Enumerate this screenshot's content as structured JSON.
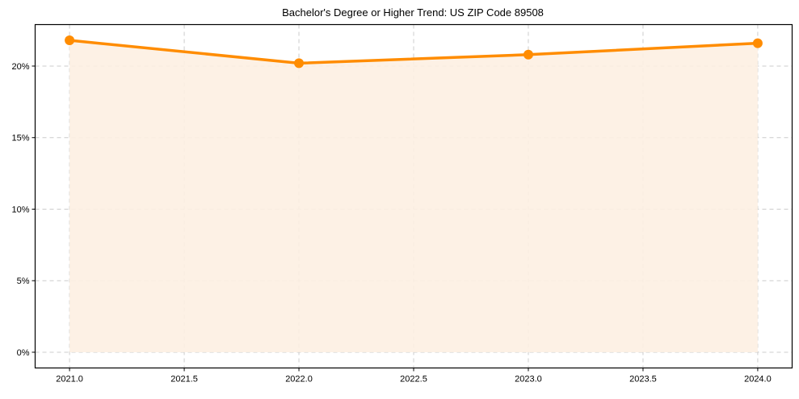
{
  "chart_data": {
    "type": "line",
    "title": "Bachelor's Degree or Higher Trend: US ZIP Code 89508",
    "xlabel": "",
    "ylabel": "",
    "x": [
      2021,
      2022,
      2023,
      2024
    ],
    "series": [
      {
        "name": "Bachelor's Degree or Higher",
        "values": [
          21.8,
          20.2,
          20.8,
          21.6
        ],
        "color": "#ff8c00",
        "fill_color": "#fdf0e2",
        "marker": "circle",
        "fill_under": true
      }
    ],
    "xlim": [
      2020.85,
      2024.15
    ],
    "ylim": [
      -1.1,
      22.9
    ],
    "xticks": [
      2021.0,
      2021.5,
      2022.0,
      2022.5,
      2023.0,
      2023.5,
      2024.0
    ],
    "xtick_labels": [
      "2021.0",
      "2021.5",
      "2022.0",
      "2022.5",
      "2023.0",
      "2023.5",
      "2024.0"
    ],
    "yticks": [
      0,
      5,
      10,
      15,
      20
    ],
    "ytick_labels": [
      "0%",
      "5%",
      "10%",
      "15%",
      "20%"
    ],
    "grid": true,
    "grid_style": "dashed",
    "legend": null
  }
}
